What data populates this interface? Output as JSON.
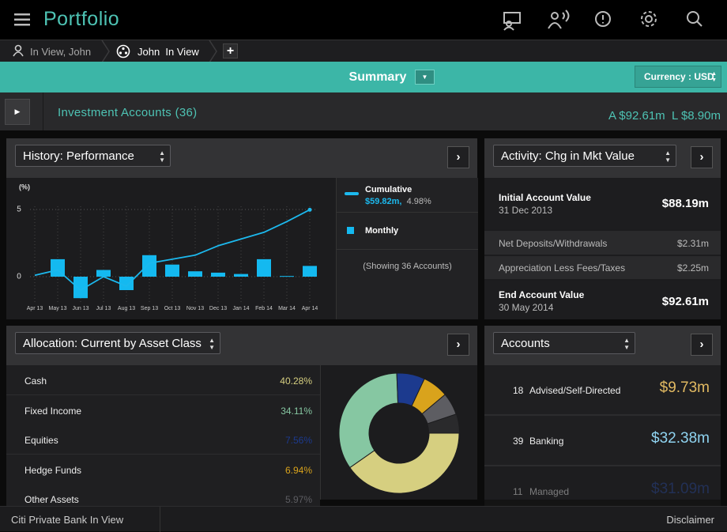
{
  "header": {
    "title": "Portfolio"
  },
  "tabs": {
    "items": [
      "In View, John",
      "John  In View"
    ],
    "add": "+"
  },
  "summary": {
    "title": "Summary",
    "currency": "Currency : USD"
  },
  "account_bar": {
    "label": "Investment Accounts (36)",
    "assets": "A $92.61m",
    "liabilities": "L $8.90m"
  },
  "performance": {
    "selector": "History: Performance",
    "y_label": "(%)",
    "categories": [
      "Apr 13",
      "May 13",
      "Jun 13",
      "Jul 13",
      "Aug 13",
      "Sep 13",
      "Oct 13",
      "Nov 13",
      "Dec 13",
      "Jan 14",
      "Feb 14",
      "Mar 14",
      "Apr 14"
    ],
    "ylim": [
      -2,
      7
    ],
    "yticks": [
      0,
      5
    ],
    "grid": true,
    "series": [
      {
        "name": "Cumulative",
        "type": "line",
        "color": "#1cb9ee",
        "value_label": "$59.82m,",
        "pct_label": "4.98%",
        "values": [
          0.1,
          0.5,
          -1.0,
          0.0,
          -0.7,
          1.0,
          1.3,
          1.6,
          2.3,
          2.8,
          3.3,
          4.1,
          4.98
        ]
      },
      {
        "name": "Monthly",
        "type": "bar",
        "color": "#14b9f0",
        "values": [
          null,
          1.3,
          -1.6,
          0.5,
          -1.0,
          1.6,
          0.9,
          0.4,
          0.3,
          0.2,
          1.3,
          0.05,
          0.8
        ]
      }
    ],
    "note": "(Showing 36 Accounts)"
  },
  "activity": {
    "selector": "Activity: Chg in Mkt Value",
    "rows": [
      {
        "label": "Initial Account Value",
        "date": "31 Dec 2013",
        "value": "$88.19m"
      },
      {
        "label": "Net Deposits/Withdrawals",
        "value": "$2.31m"
      },
      {
        "label": "Appreciation Less Fees/Taxes",
        "value": "$2.25m"
      },
      {
        "label": "End Account Value",
        "date": "30 May 2014",
        "value": "$92.61m"
      }
    ]
  },
  "allocation": {
    "selector": "Allocation: Current by Asset Class",
    "rows": [
      {
        "label": "Cash",
        "value": 40.28,
        "value_label": "40.28%",
        "color": "#d6cf80"
      },
      {
        "label": "Fixed Income",
        "value": 34.11,
        "value_label": "34.11%",
        "color": "#86c7a2"
      },
      {
        "label": "Equities",
        "value": 7.56,
        "value_label": "7.56%",
        "color": "#1c3a8e"
      },
      {
        "label": "Hedge Funds",
        "value": 6.94,
        "value_label": "6.94%",
        "color": "#d9a31c"
      },
      {
        "label": "Other Assets",
        "value": 5.97,
        "value_label": "5.97%",
        "color": "#5d5d62"
      }
    ]
  },
  "accounts": {
    "selector": "Accounts",
    "rows": [
      {
        "count": 18,
        "name": "Advised/Self-Directed",
        "value": "$9.73m",
        "color": "#e2ba62"
      },
      {
        "count": 39,
        "name": "Banking",
        "value": "$32.38m",
        "color": "#8fd3f0"
      },
      {
        "count": 11,
        "name": "Managed",
        "value": "$31.09m",
        "color": "#2b4a9a"
      }
    ]
  },
  "footer": {
    "left": "Citi Private Bank In View",
    "right": "Disclaimer"
  }
}
